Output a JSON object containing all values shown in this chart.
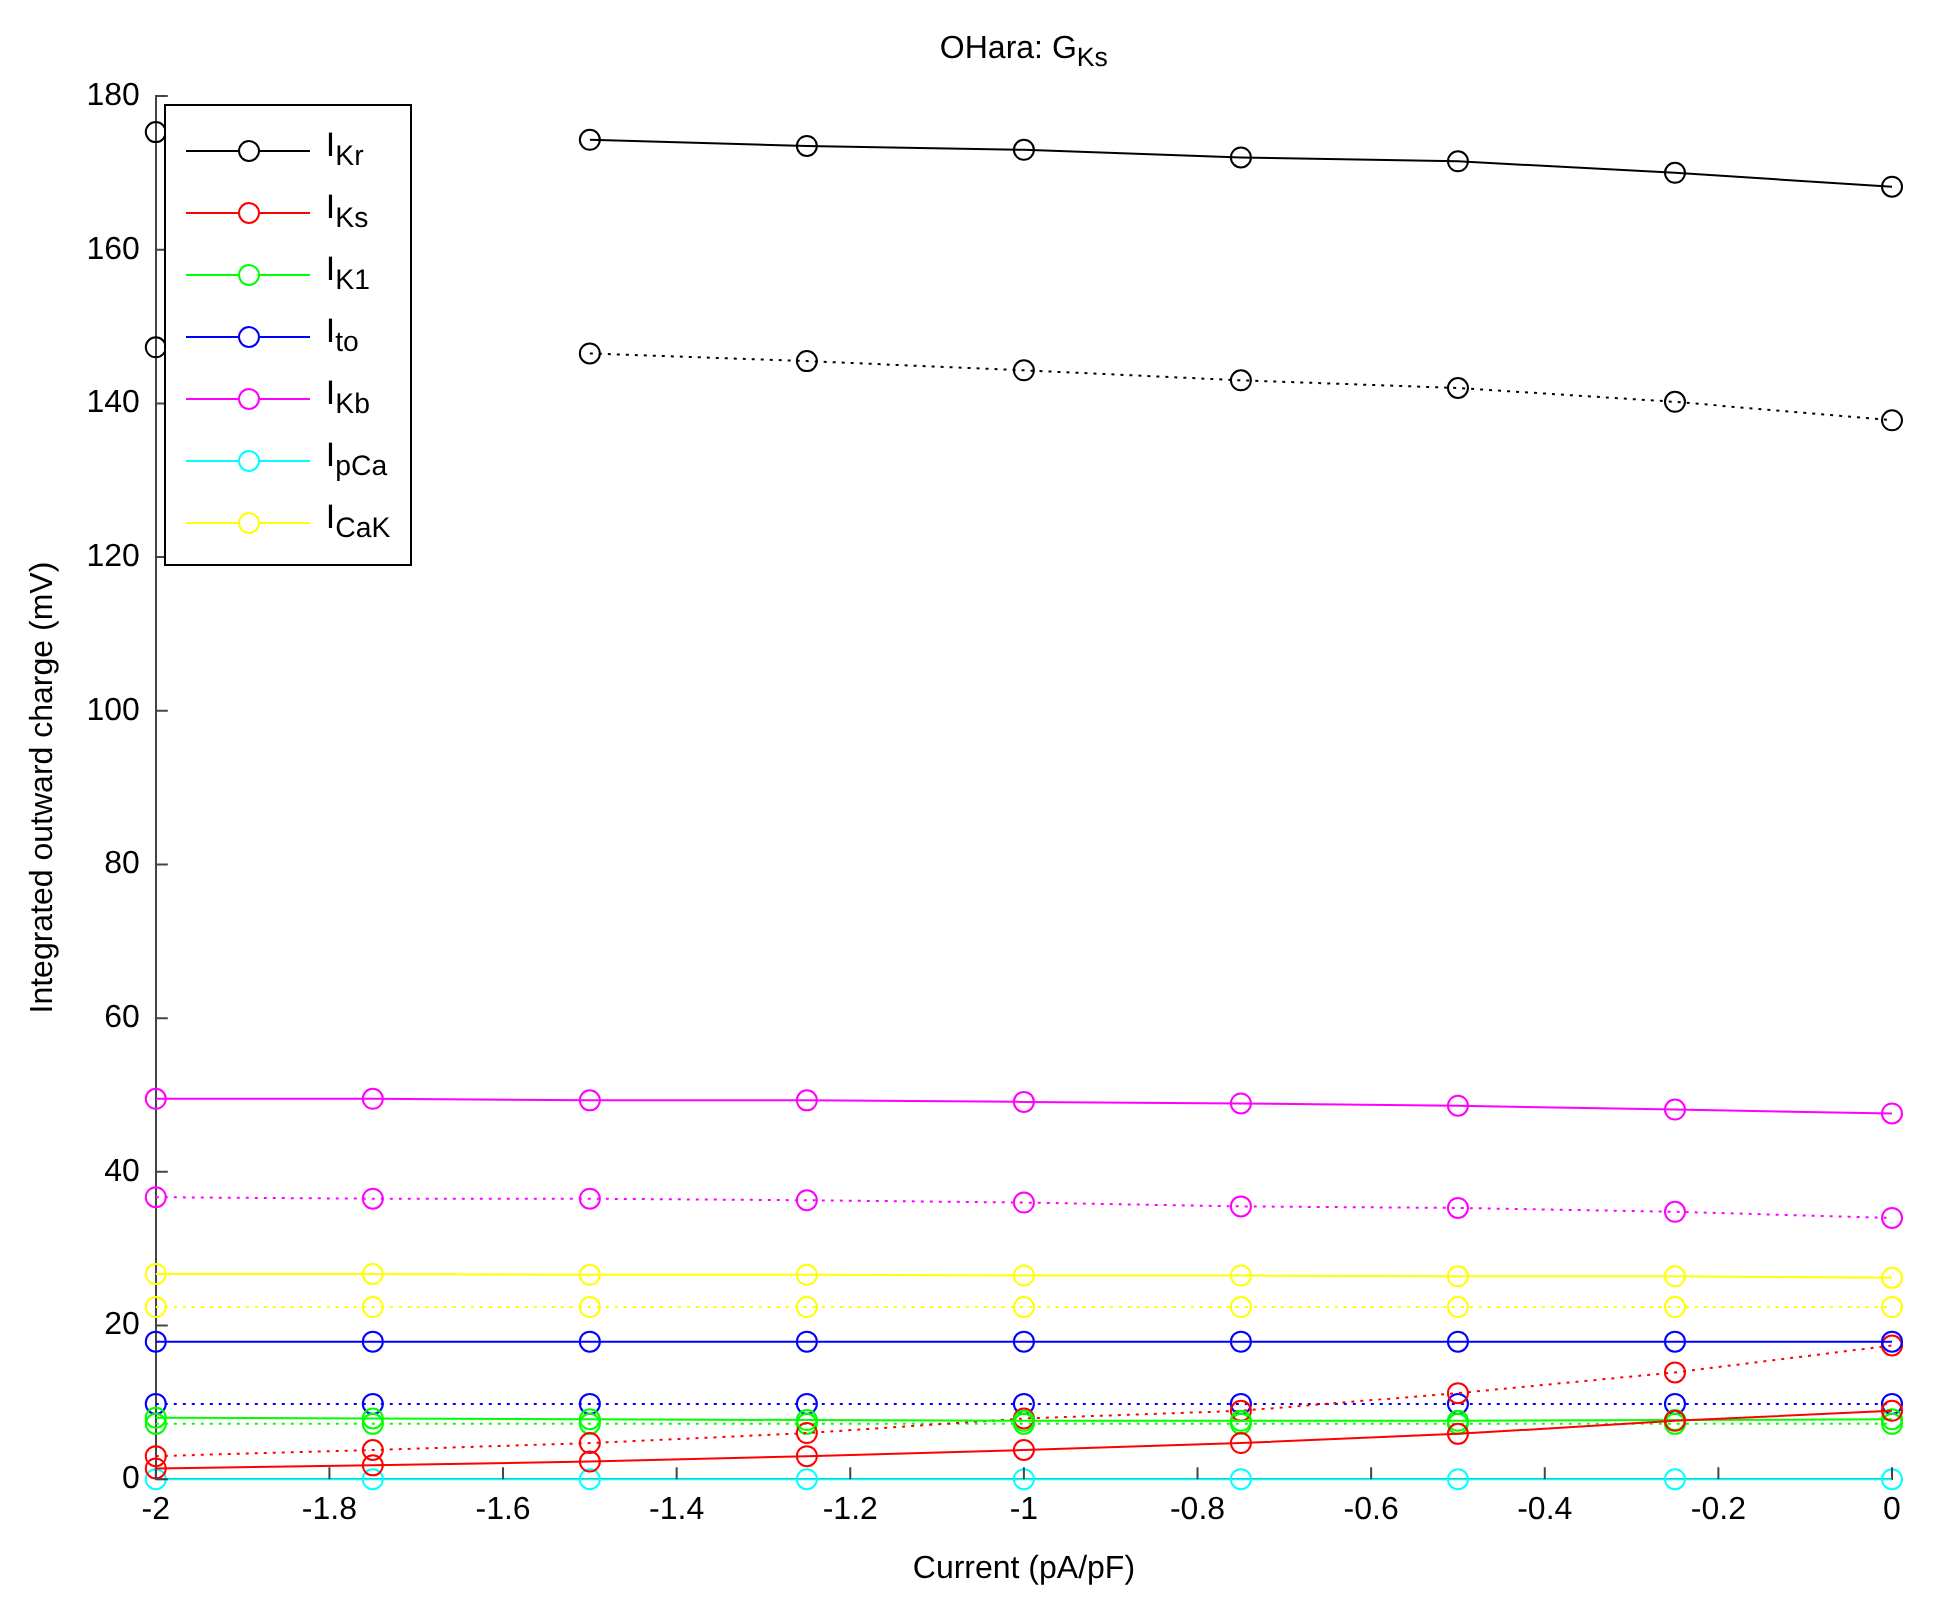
{
  "chart_data": {
    "type": "line",
    "title": "OHara: G$_{Ks}$",
    "xlabel": "Current (pA/pF)",
    "ylabel": "Integrated outward charge (mV)",
    "x": [
      -2,
      -1.75,
      -1.5,
      -1.25,
      -1,
      -0.75,
      -0.5,
      -0.25,
      0
    ],
    "series": [
      {
        "name": "I$_{Kr}$",
        "color": "#000000",
        "values": [
          175.3,
          null,
          174.3,
          173.5,
          173,
          172,
          171.5,
          170,
          168.2
        ]
      },
      {
        "name": "I$_{Ks}$",
        "color": "#ff0000",
        "values": [
          1.4,
          1.8,
          2.3,
          3,
          3.8,
          4.7,
          5.9,
          7.6,
          8.9
        ]
      },
      {
        "name": "I$_{K1}$",
        "color": "#00ff00",
        "values": [
          8,
          7.9,
          7.8,
          7.7,
          7.6,
          7.6,
          7.6,
          7.7,
          7.8
        ]
      },
      {
        "name": "I$_{to}$",
        "color": "#0000ff",
        "values": [
          17.9,
          17.9,
          17.9,
          17.9,
          17.9,
          17.9,
          17.9,
          17.9,
          17.9
        ]
      },
      {
        "name": "I$_{Kb}$",
        "color": "#ff00ff",
        "values": [
          49.5,
          49.5,
          49.3,
          49.3,
          49.1,
          48.9,
          48.6,
          48.1,
          47.6
        ]
      },
      {
        "name": "I$_{pCa}$",
        "color": "#00ffff",
        "values": [
          0,
          0,
          0,
          0,
          0,
          0,
          0,
          0,
          0
        ]
      },
      {
        "name": "I$_{CaK}$",
        "color": "#ffff00",
        "values": [
          26.7,
          26.7,
          26.6,
          26.6,
          26.5,
          26.5,
          26.4,
          26.4,
          26.2
        ]
      },
      {
        "color": "#000000",
        "line_style": "dotted",
        "values": [
          147.3,
          null,
          146.5,
          145.5,
          144.3,
          143,
          142,
          140.2,
          137.8
        ]
      },
      {
        "color": "#ff0000",
        "line_style": "dotted",
        "values": [
          3,
          3.8,
          4.7,
          6,
          7.9,
          8.9,
          11.2,
          13.9,
          17.4
        ]
      },
      {
        "color": "#00ff00",
        "line_style": "dotted",
        "values": [
          7.2,
          7.2,
          7.2,
          7.2,
          7.2,
          7.2,
          7.2,
          7.2,
          7.2
        ]
      },
      {
        "color": "#0000ff",
        "line_style": "dotted",
        "values": [
          9.8,
          9.8,
          9.8,
          9.8,
          9.8,
          9.8,
          9.8,
          9.8,
          9.8
        ]
      },
      {
        "color": "#ff00ff",
        "line_style": "dotted",
        "values": [
          36.7,
          36.5,
          36.5,
          36.3,
          36,
          35.5,
          35.3,
          34.8,
          34
        ]
      },
      {
        "color": "#ffff00",
        "line_style": "dotted",
        "values": [
          22.4,
          22.4,
          22.4,
          22.4,
          22.4,
          22.4,
          22.4,
          22.4,
          22.4
        ]
      }
    ],
    "xlim": [
      -2,
      0
    ],
    "xticks": [
      -2,
      -1.8,
      -1.6,
      -1.4,
      -1.2,
      -1,
      -0.8,
      -0.6,
      -0.4,
      -0.2,
      0
    ],
    "ylim": [
      0,
      180
    ],
    "yticks": [
      0,
      20,
      40,
      60,
      80,
      100,
      120,
      140,
      160,
      180
    ],
    "grid": false,
    "legend": "top left",
    "marker": "circle",
    "line_style": "solid"
  }
}
